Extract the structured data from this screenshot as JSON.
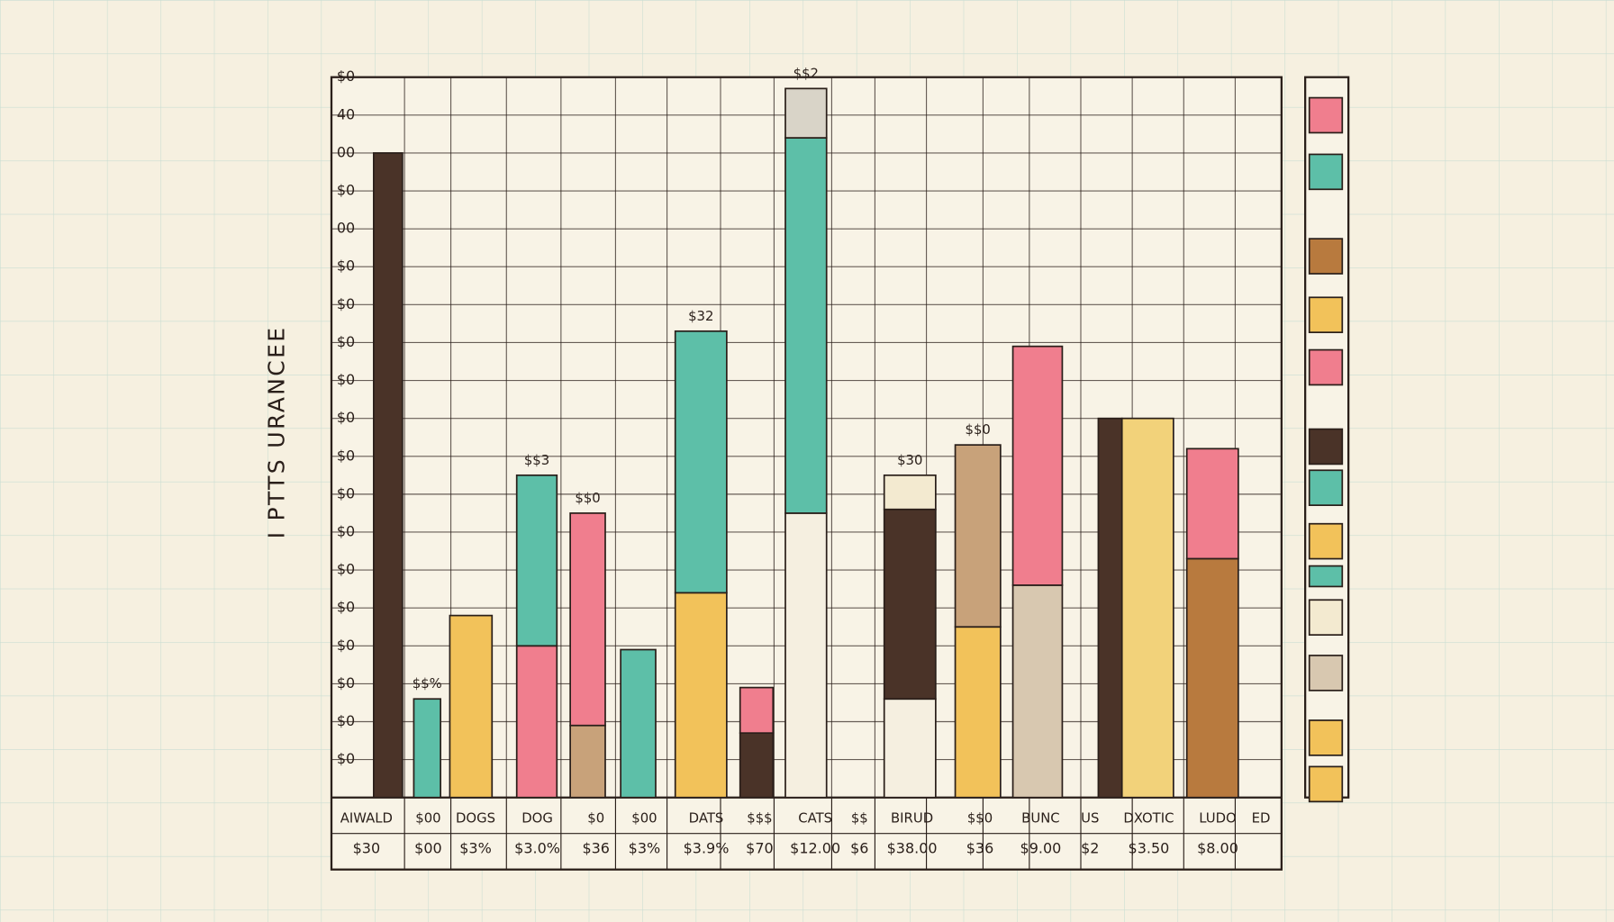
{
  "chart_data": {
    "type": "bar",
    "title": "I PTTS URANCEE",
    "ylim": [
      0,
      19
    ],
    "yticks": [
      {
        "value": 1,
        "label": "$0"
      },
      {
        "value": 2,
        "label": "$0"
      },
      {
        "value": 3,
        "label": "$0"
      },
      {
        "value": 4,
        "label": "$0"
      },
      {
        "value": 5,
        "label": "$0"
      },
      {
        "value": 6,
        "label": "$0"
      },
      {
        "value": 7,
        "label": "$0"
      },
      {
        "value": 8,
        "label": "$0"
      },
      {
        "value": 9,
        "label": "$0"
      },
      {
        "value": 10,
        "label": "$0"
      },
      {
        "value": 11,
        "label": "$0"
      },
      {
        "value": 12,
        "label": "$0"
      },
      {
        "value": 13,
        "label": "$0"
      },
      {
        "value": 14,
        "label": "$0"
      },
      {
        "value": 15,
        "label": "00"
      },
      {
        "value": 16,
        "label": "$0"
      },
      {
        "value": 17,
        "label": "00"
      },
      {
        "value": 18,
        "label": "40"
      },
      {
        "value": 19,
        "label": "$0"
      }
    ],
    "grid": true,
    "bars": [
      {
        "segments": [
          {
            "color": "#4a3328",
            "value": 17.0
          }
        ]
      },
      {
        "label": "$$%",
        "segments": [
          {
            "color": "#5dbfa8",
            "value": 2.6
          }
        ]
      },
      {
        "segments": [
          {
            "color": "#f2c25a",
            "value": 4.8
          }
        ]
      },
      {
        "label": "$$3",
        "segments": [
          {
            "color": "#f07e8e",
            "value": 4.0
          },
          {
            "color": "#5dbfa8",
            "value": 4.5
          }
        ]
      },
      {
        "label": "$$0",
        "segments": [
          {
            "color": "#c8a27a",
            "value": 1.9
          },
          {
            "color": "#f07e8e",
            "value": 5.6
          }
        ]
      },
      {
        "segments": [
          {
            "color": "#5dbfa8",
            "value": 3.9
          }
        ]
      },
      {
        "label": "$32",
        "segments": [
          {
            "color": "#f2c25a",
            "value": 5.4
          },
          {
            "color": "#5dbfa8",
            "value": 6.9
          }
        ]
      },
      {
        "segments": [
          {
            "color": "#4a3328",
            "value": 1.7
          },
          {
            "color": "#f07e8e",
            "value": 1.2
          }
        ]
      },
      {
        "label": "$$2",
        "segments": [
          {
            "color": "#f5efe0",
            "value": 7.5
          },
          {
            "color": "#5dbfa8",
            "value": 9.9
          },
          {
            "color": "#d9d4c8",
            "value": 1.3
          }
        ]
      },
      {
        "label": "$30",
        "segments": [
          {
            "color": "#f5efe0",
            "value": 2.6
          },
          {
            "color": "#4a3328",
            "value": 5.0
          },
          {
            "color": "#f3ead0",
            "value": 0.9
          }
        ]
      },
      {
        "label": "$$0",
        "segments": [
          {
            "color": "#f2c25a",
            "value": 4.5
          },
          {
            "color": "#c8a27a",
            "value": 4.8
          }
        ]
      },
      {
        "segments": [
          {
            "color": "#d8c8b0",
            "value": 5.6
          },
          {
            "color": "#f07e8e",
            "value": 6.3
          }
        ]
      },
      {
        "segments": [
          {
            "color": "#4a3328",
            "value": 10.0
          }
        ]
      },
      {
        "segments": [
          {
            "color": "#f2d27a",
            "value": 10.0
          }
        ]
      },
      {
        "segments": [
          {
            "color": "#b87a3e",
            "value": 6.3
          },
          {
            "color": "#f07e8e",
            "value": 2.9
          }
        ]
      }
    ],
    "table": {
      "names": [
        "AIWALD",
        "$00",
        "DOGS",
        "DOG",
        "$0",
        "$00",
        "DATS",
        "$$$",
        "CATS",
        "$$",
        "BIRUD",
        "$$0",
        "BUNC",
        "US",
        "DXOTIC",
        "LUDO",
        "ED"
      ],
      "prices": [
        "$30",
        "$00",
        "$3%",
        "$3.0%",
        "$36",
        "$3%",
        "$3.9%",
        "$70",
        "$12.00",
        "$6",
        "$38.00",
        "$36",
        "$9.00",
        "$2",
        "$3.50",
        "$8.00"
      ]
    },
    "legend_colors": [
      "#f07e8e",
      "#5dbfa8",
      "#b87a3e",
      "#f2c25a",
      "#f07e8e",
      "#4a3328",
      "#5dbfa8",
      "#f2c25a",
      "#5dbfa8",
      "#f3ead0",
      "#d8c8b0",
      "#f2c25a",
      "#f2c25a"
    ]
  }
}
